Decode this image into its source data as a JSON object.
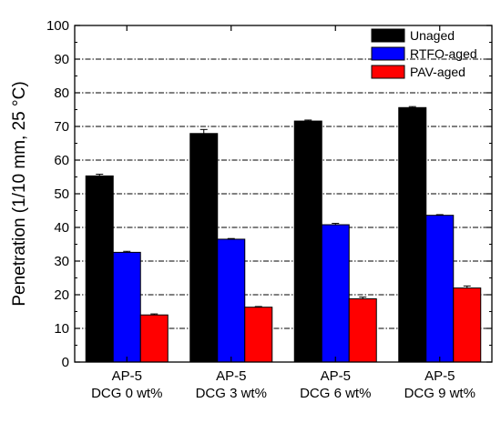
{
  "chart_data": {
    "type": "bar",
    "ylabel": "Penetration (1/10 mm, 25 °C)",
    "xlabel": "",
    "ylim": [
      0,
      100
    ],
    "yticks": [
      0,
      10,
      20,
      30,
      40,
      50,
      60,
      70,
      80,
      90,
      100
    ],
    "grid": "horizontal dash-dot lines at major y ticks",
    "legend_position": "top-right",
    "categories": [
      {
        "line1": "AP-5",
        "line2": "DCG 0 wt%"
      },
      {
        "line1": "AP-5",
        "line2": "DCG 3 wt%"
      },
      {
        "line1": "AP-5",
        "line2": "DCG 6 wt%"
      },
      {
        "line1": "AP-5",
        "line2": "DCG 9 wt%"
      }
    ],
    "series": [
      {
        "name": "Unaged",
        "color": "#000000",
        "values": [
          55.3,
          67.9,
          71.6,
          75.6
        ],
        "errors": [
          0.5,
          1.2,
          0.3,
          0.3
        ]
      },
      {
        "name": "RTFO-aged",
        "color": "#0000ff",
        "values": [
          32.6,
          36.5,
          40.8,
          43.6
        ],
        "errors": [
          0.3,
          0.2,
          0.4,
          0.2
        ]
      },
      {
        "name": "PAV-aged",
        "color": "#ff0000",
        "values": [
          14.0,
          16.3,
          18.8,
          22.0
        ],
        "errors": [
          0.3,
          0.2,
          0.5,
          0.6
        ]
      }
    ]
  }
}
